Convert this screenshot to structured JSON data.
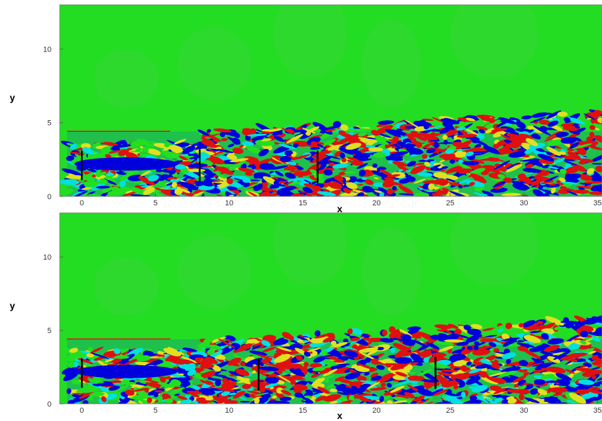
{
  "chart_data": [
    {
      "type": "heatmap",
      "xlabel": "x",
      "ylabel": "y",
      "xlim": [
        -1.5,
        35.3
      ],
      "ylim": [
        0,
        13
      ],
      "x_ticks": [
        0,
        5,
        10,
        15,
        20,
        25,
        30,
        35
      ],
      "y_ticks": [
        0,
        5,
        10
      ],
      "x_tick_labels": [
        "0",
        "5",
        "10",
        "15",
        "20",
        "25",
        "30",
        "35"
      ],
      "y_tick_labels": [
        "0",
        "5",
        "10"
      ],
      "colormap": [
        "#0000dd",
        "#00e0e0",
        "#20e020",
        "#e0e020",
        "#e01010"
      ],
      "background_color": "#22dd22",
      "turbulent_layer_top": 4.4,
      "turbines": [
        {
          "x": 0,
          "y_bottom": 1.1,
          "y_top": 3.1
        },
        {
          "x": 8,
          "y_bottom": 1.0,
          "y_top": 3.2
        },
        {
          "x": 16,
          "y_bottom": 0.9,
          "y_top": 3.1
        }
      ]
    },
    {
      "type": "heatmap",
      "xlabel": "x",
      "ylabel": "y",
      "xlim": [
        -1.5,
        35.3
      ],
      "ylim": [
        0,
        13
      ],
      "x_ticks": [
        0,
        5,
        10,
        15,
        20,
        25,
        30,
        35
      ],
      "y_ticks": [
        0,
        5,
        10
      ],
      "x_tick_labels": [
        "0",
        "5",
        "10",
        "15",
        "20",
        "25",
        "30",
        "35"
      ],
      "y_tick_labels": [
        "0",
        "5",
        "10"
      ],
      "colormap": [
        "#0000dd",
        "#00e0e0",
        "#20e020",
        "#e0e020",
        "#e01010"
      ],
      "background_color": "#22dd22",
      "turbulent_layer_top": 4.4,
      "turbines": [
        {
          "x": 0,
          "y_bottom": 1.1,
          "y_top": 3.1
        },
        {
          "x": 12,
          "y_bottom": 0.9,
          "y_top": 3.1
        },
        {
          "x": 24,
          "y_bottom": 1.0,
          "y_top": 3.2
        }
      ]
    }
  ]
}
